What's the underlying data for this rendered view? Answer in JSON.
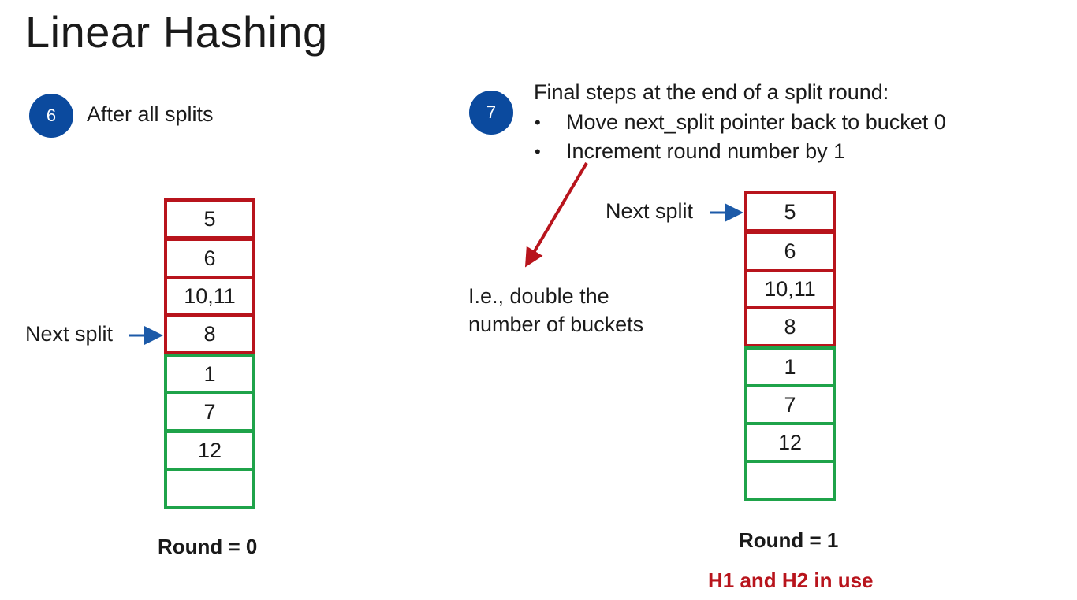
{
  "title": "Linear Hashing",
  "step6": {
    "badge": "6",
    "caption": "After all splits",
    "next_split_label": "Next split",
    "buckets": [
      "5",
      "6",
      "10,11",
      "8",
      "1",
      "7",
      "12",
      ""
    ],
    "round_label": "Round = 0"
  },
  "step7": {
    "badge": "7",
    "heading": "Final steps at the end of a split round:",
    "bullets": [
      "Move next_split pointer back to bucket 0",
      "Increment round number by 1"
    ],
    "bullet_symbol": "•",
    "note_line1": "I.e., double the",
    "note_line2": "number of buckets",
    "next_split_label": "Next split",
    "buckets": [
      "5",
      "6",
      "10,11",
      "8",
      "1",
      "7",
      "12",
      ""
    ],
    "round_label": "Round = 1",
    "hash_label": "H1 and H2 in use"
  },
  "colors": {
    "badge": "#0b4a9e",
    "red": "#b8141c",
    "green": "#1fa34a",
    "arrow_blue": "#1c5aa8"
  }
}
